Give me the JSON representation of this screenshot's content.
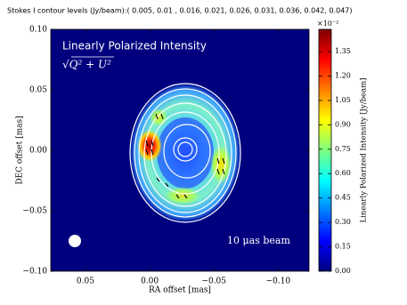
{
  "chart_data": {
    "type": "image",
    "title": "Stokes I contour levels (Jy/beam):( 0.005, 0.01 , 0.016, 0.021, 0.026, 0.031, 0.036, 0.042, 0.047)",
    "xlabel": "RA offset [mas]",
    "ylabel": "DEC offset [mas]",
    "xlim": [
      0.077,
      -0.124
    ],
    "ylim": [
      -0.1,
      0.1
    ],
    "xticks": [
      {
        "value": 0.05,
        "label": "0.05"
      },
      {
        "value": 0,
        "label": "0.00"
      },
      {
        "value": -0.05,
        "label": "−0.05"
      },
      {
        "value": -0.1,
        "label": "−0.10"
      }
    ],
    "yticks": [
      {
        "value": 0.1,
        "label": "0.10"
      },
      {
        "value": 0.05,
        "label": "0.05"
      },
      {
        "value": 0,
        "label": "0.00"
      },
      {
        "value": -0.05,
        "label": "−0.05"
      },
      {
        "value": -0.1,
        "label": "−0.10"
      }
    ],
    "annotations": {
      "name": "Linearly Polarized Intensity",
      "formula": "√Q² + U²",
      "beam": "10 μas beam"
    },
    "colorbar": {
      "label": "Linearly Polarized Intensity [Jy/beam]",
      "exponent_label": "×10⁻²",
      "colormap": "jet",
      "lim": [
        0,
        1.487
      ],
      "ticks": [
        {
          "value": 0,
          "label": "0.00"
        },
        0.15,
        {
          "value": 0.3,
          "label": "0.30"
        },
        0.45,
        {
          "value": 0.6,
          "label": "0.60"
        },
        0.75,
        {
          "value": 0.9,
          "label": "0.90"
        },
        1.05,
        {
          "value": 1.2,
          "label": "1.20"
        },
        1.35
      ]
    }
  }
}
